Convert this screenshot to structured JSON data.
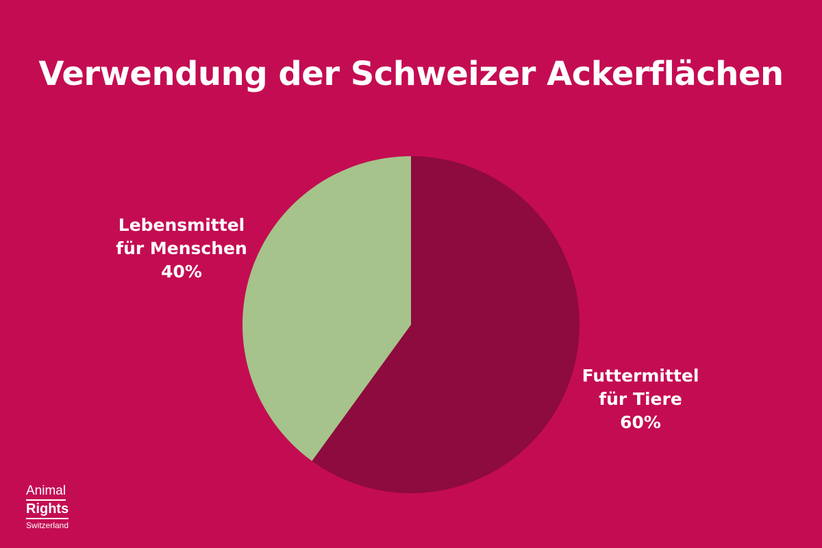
{
  "title": "Verwendung der Schweizer Ackerflächen",
  "colors": {
    "background": "#c40c52",
    "food": "#a5c38b",
    "feed": "#8d0b3e",
    "text": "#ffffff"
  },
  "chart_data": {
    "type": "pie",
    "title": "Verwendung der Schweizer Ackerflächen",
    "slices": [
      {
        "line1": "Futtermittel",
        "line2": "für Tiere",
        "value": 60,
        "value_label": "60%",
        "color": "#8d0b3e"
      },
      {
        "line1": "Lebensmittel",
        "line2": "für Menschen",
        "value": 40,
        "value_label": "40%",
        "color": "#a5c38b"
      }
    ],
    "start_angle_deg": 0,
    "direction": "clockwise"
  },
  "logo": {
    "line1": "Animal",
    "line2": "Rights",
    "line3": "Switzerland"
  }
}
